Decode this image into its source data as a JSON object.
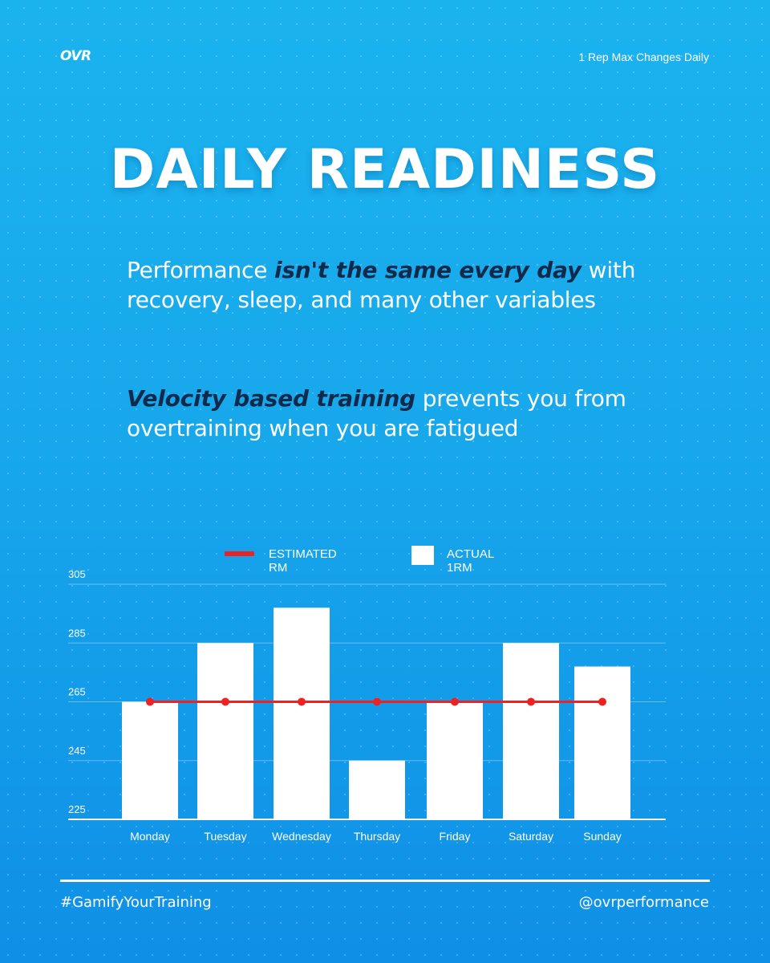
{
  "brand": {
    "logo_text": "OVR",
    "tagline": "1 Rep Max Changes Daily"
  },
  "headline": "DAILY READINESS",
  "paragraph1": {
    "part1": "Performance ",
    "emphasis": "isn't the same every day",
    "part2": " with recovery, sleep, and many other variables"
  },
  "paragraph2": {
    "emphasis": "Velocity based training",
    "part2": " prevents you from overtraining when you are fatigued"
  },
  "legend": {
    "estimated": "ESTIMATED RM",
    "actual": "ACTUAL 1RM"
  },
  "colors": {
    "estimated_line": "#ee2222",
    "bars": "#ffffff",
    "grid": "rgba(255,255,255,0.35)"
  },
  "chart_data": {
    "type": "bar",
    "categories": [
      "Monday",
      "Tuesday",
      "Wednesday",
      "Thursday",
      "Friday",
      "Saturday",
      "Sunday"
    ],
    "series": [
      {
        "name": "ACTUAL 1RM",
        "type": "bar",
        "values": [
          265,
          285,
          297,
          245,
          265,
          285,
          277
        ]
      },
      {
        "name": "ESTIMATED RM",
        "type": "line",
        "values": [
          265,
          265,
          265,
          265,
          265,
          265,
          265
        ]
      }
    ],
    "ylim": [
      225,
      305
    ],
    "yticks": [
      305,
      285,
      265,
      245,
      225
    ],
    "grid": true,
    "legend_position": "top"
  },
  "footer": {
    "hashtag": "#GamifyYourTraining",
    "handle": "@ovrperformance"
  }
}
